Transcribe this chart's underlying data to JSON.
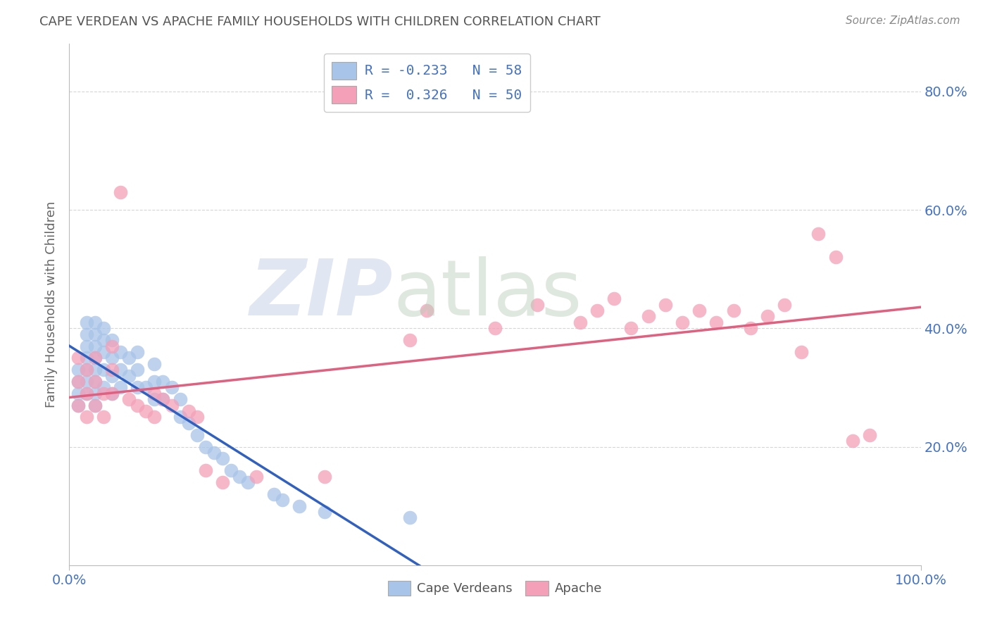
{
  "title": "CAPE VERDEAN VS APACHE FAMILY HOUSEHOLDS WITH CHILDREN CORRELATION CHART",
  "source": "Source: ZipAtlas.com",
  "ylabel": "Family Households with Children",
  "cv_color": "#a8c4e8",
  "ap_color": "#f4a0b8",
  "cv_line_color": "#3060c0",
  "ap_line_color": "#e06080",
  "legend_cv_r": "R = -0.233",
  "legend_cv_n": "N = 58",
  "legend_ap_r": "R =  0.326",
  "legend_ap_n": "N = 50",
  "legend_cv_label": "Cape Verdeans",
  "legend_ap_label": "Apache",
  "ytick_values": [
    0.2,
    0.4,
    0.6,
    0.8
  ],
  "ytick_labels": [
    "20.0%",
    "40.0%",
    "60.0%",
    "80.0%"
  ],
  "background_color": "#ffffff",
  "grid_color": "#cccccc",
  "cv_scatter_x": [
    1,
    1,
    1,
    1,
    2,
    2,
    2,
    2,
    2,
    2,
    2,
    3,
    3,
    3,
    3,
    3,
    3,
    3,
    3,
    4,
    4,
    4,
    4,
    4,
    5,
    5,
    5,
    5,
    6,
    6,
    6,
    7,
    7,
    8,
    8,
    8,
    9,
    10,
    10,
    10,
    11,
    11,
    12,
    13,
    13,
    14,
    15,
    16,
    17,
    18,
    19,
    20,
    21,
    24,
    25,
    27,
    30,
    40
  ],
  "cv_scatter_y": [
    0.27,
    0.29,
    0.31,
    0.33,
    0.29,
    0.31,
    0.33,
    0.35,
    0.37,
    0.39,
    0.41,
    0.27,
    0.29,
    0.31,
    0.33,
    0.35,
    0.37,
    0.39,
    0.41,
    0.3,
    0.33,
    0.36,
    0.38,
    0.4,
    0.29,
    0.32,
    0.35,
    0.38,
    0.3,
    0.33,
    0.36,
    0.32,
    0.35,
    0.3,
    0.33,
    0.36,
    0.3,
    0.28,
    0.31,
    0.34,
    0.28,
    0.31,
    0.3,
    0.25,
    0.28,
    0.24,
    0.22,
    0.2,
    0.19,
    0.18,
    0.16,
    0.15,
    0.14,
    0.12,
    0.11,
    0.1,
    0.09,
    0.08
  ],
  "ap_scatter_x": [
    1,
    1,
    1,
    2,
    2,
    2,
    3,
    3,
    3,
    4,
    4,
    5,
    5,
    5,
    6,
    7,
    8,
    9,
    10,
    10,
    11,
    12,
    14,
    15,
    16,
    18,
    22,
    30,
    40,
    42,
    50,
    55,
    60,
    62,
    64,
    66,
    68,
    70,
    72,
    74,
    76,
    78,
    80,
    82,
    84,
    86,
    88,
    90,
    92,
    94
  ],
  "ap_scatter_y": [
    0.27,
    0.31,
    0.35,
    0.25,
    0.29,
    0.33,
    0.27,
    0.31,
    0.35,
    0.25,
    0.29,
    0.29,
    0.33,
    0.37,
    0.63,
    0.28,
    0.27,
    0.26,
    0.25,
    0.29,
    0.28,
    0.27,
    0.26,
    0.25,
    0.16,
    0.14,
    0.15,
    0.15,
    0.38,
    0.43,
    0.4,
    0.44,
    0.41,
    0.43,
    0.45,
    0.4,
    0.42,
    0.44,
    0.41,
    0.43,
    0.41,
    0.43,
    0.4,
    0.42,
    0.44,
    0.36,
    0.56,
    0.52,
    0.21,
    0.22
  ]
}
